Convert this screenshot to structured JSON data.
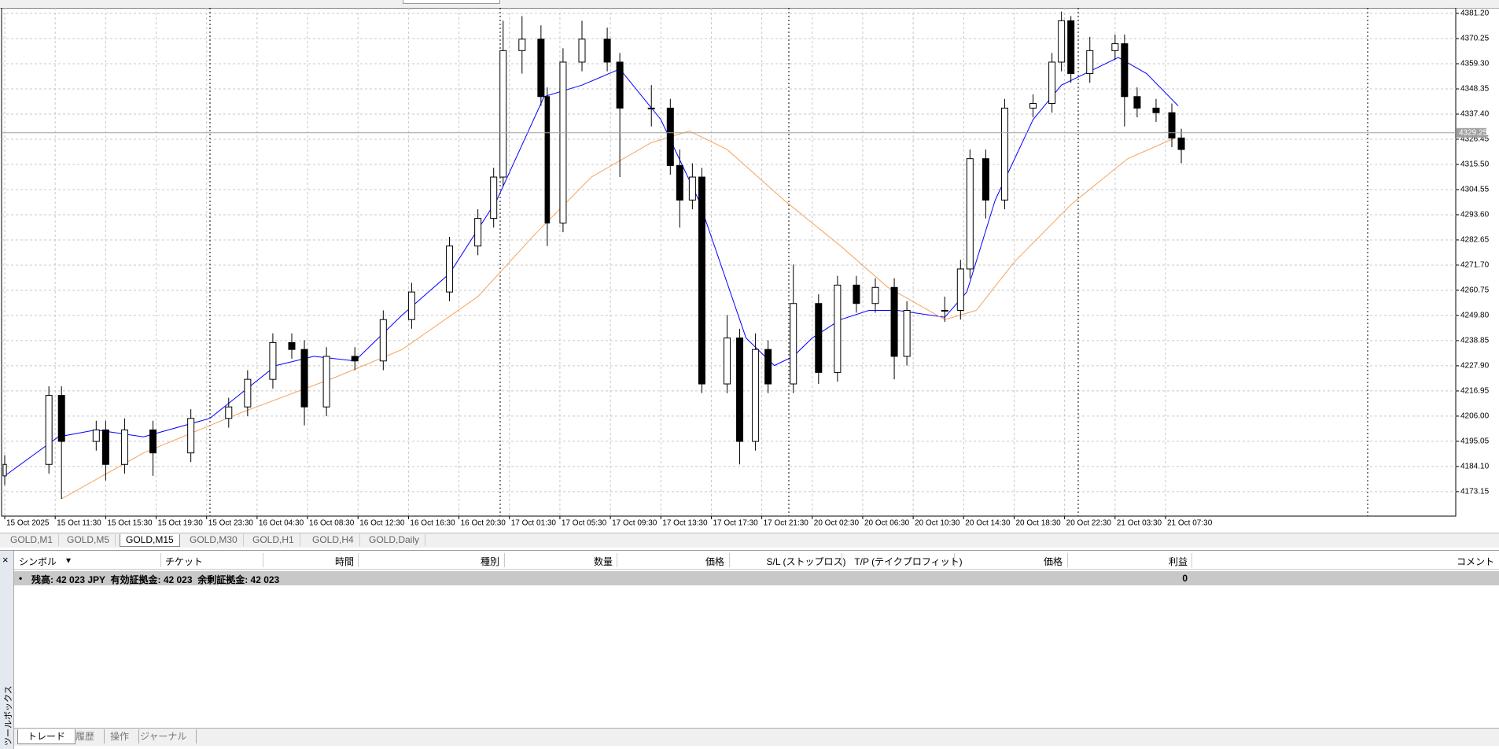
{
  "chart_data": {
    "type": "candlestick",
    "candles": {
      "x": [
        0,
        14,
        18,
        29,
        32,
        38,
        47,
        59,
        71,
        77,
        85,
        91,
        95,
        102,
        111,
        120,
        129,
        141,
        150,
        155,
        158,
        164,
        170,
        172,
        177,
        183,
        191,
        195,
        205,
        211,
        214,
        218,
        221,
        229,
        233,
        238,
        242,
        250,
        258,
        264,
        270,
        276,
        282,
        286,
        298,
        303,
        306,
        311,
        317,
        326,
        332,
        335,
        338,
        344,
        352,
        355,
        359,
        365,
        370,
        373
      ],
      "open": [
        4180,
        4185,
        4215,
        4195,
        4200,
        4185,
        4200,
        4190,
        4205,
        4210,
        4222,
        4238,
        4235,
        4210,
        4232,
        4230,
        4248,
        4260,
        4280,
        4292,
        4310,
        4365,
        4370,
        4345,
        4290,
        4360,
        4370,
        4360,
        4340,
        4340,
        4315,
        4300,
        4310,
        4220,
        4240,
        4195,
        4235,
        4220,
        4255,
        4225,
        4263,
        4255,
        4262,
        4232,
        4252,
        4252,
        4270,
        4318,
        4300,
        4340,
        4342,
        4360,
        4378,
        4355,
        4365,
        4368,
        4345,
        4340,
        4338,
        4327
      ],
      "high": [
        4189,
        4219,
        4219,
        4204,
        4204,
        4205,
        4204,
        4209,
        4214,
        4226,
        4242,
        4242,
        4239,
        4236,
        4236,
        4252,
        4264,
        4284,
        4296,
        4314,
        4378,
        4380,
        4376,
        4349,
        4366,
        4378,
        4375,
        4364,
        4350,
        4344,
        4322,
        4316,
        4314,
        4250,
        4244,
        4242,
        4239,
        4272,
        4259,
        4267,
        4267,
        4266,
        4266,
        4256,
        4258,
        4274,
        4322,
        4322,
        4344,
        4346,
        4364,
        4382,
        4380,
        4371,
        4372,
        4372,
        4349,
        4344,
        4342,
        4331
      ],
      "low": [
        4176,
        4181,
        4170,
        4191,
        4178,
        4181,
        4180,
        4186,
        4201,
        4206,
        4218,
        4231,
        4202,
        4206,
        4226,
        4226,
        4244,
        4256,
        4276,
        4288,
        4306,
        4355,
        4341,
        4280,
        4286,
        4356,
        4356,
        4310,
        4332,
        4311,
        4288,
        4296,
        4216,
        4216,
        4185,
        4191,
        4216,
        4216,
        4220,
        4221,
        4251,
        4251,
        4222,
        4228,
        4247,
        4248,
        4266,
        4292,
        4296,
        4336,
        4338,
        4356,
        4351,
        4351,
        4361,
        4332,
        4336,
        4334,
        4323,
        4316
      ],
      "close": [
        4185,
        4215,
        4195,
        4200,
        4185,
        4200,
        4190,
        4205,
        4210,
        4222,
        4238,
        4235,
        4210,
        4232,
        4230,
        4248,
        4260,
        4280,
        4292,
        4310,
        4365,
        4370,
        4345,
        4290,
        4360,
        4370,
        4360,
        4340,
        4340,
        4315,
        4300,
        4310,
        4220,
        4240,
        4195,
        4235,
        4220,
        4255,
        4225,
        4263,
        4255,
        4262,
        4232,
        4252,
        4252,
        4270,
        4318,
        4300,
        4340,
        4342,
        4360,
        4378,
        4355,
        4365,
        4368,
        4345,
        4340,
        4338,
        4327,
        4322
      ]
    },
    "series": [
      {
        "color": "#0000ff",
        "x": [
          0,
          17,
          29,
          44,
          65,
          86,
          98,
          111,
          126,
          141,
          156,
          171,
          183,
          195,
          208,
          220,
          235,
          244,
          250,
          256,
          265,
          274,
          283,
          298,
          305,
          314,
          326,
          335,
          347,
          353,
          362,
          372
        ],
        "values": [
          4180,
          4197,
          4200,
          4197,
          4205,
          4228,
          4232,
          4230,
          4250,
          4268,
          4300,
          4345,
          4350,
          4357,
          4335,
          4300,
          4240,
          4228,
          4232,
          4240,
          4248,
          4252,
          4252,
          4249,
          4260,
          4300,
          4335,
          4350,
          4358,
          4362,
          4355,
          4341
        ]
      },
      {
        "color": "#f4a460",
        "x": [
          18,
          44,
          74,
          105,
          126,
          150,
          168,
          186,
          205,
          217,
          229,
          247,
          265,
          280,
          298,
          308,
          320,
          338,
          356,
          371
        ],
        "values": [
          4170,
          4190,
          4207,
          4223,
          4235,
          4258,
          4285,
          4310,
          4325,
          4330,
          4322,
          4300,
          4280,
          4262,
          4248,
          4252,
          4273,
          4298,
          4318,
          4327
        ]
      }
    ],
    "current_price": {
      "value": 4329.25,
      "label": "4329.25"
    },
    "xlim": [
      -1,
      460
    ],
    "xticks": [
      {
        "value": 0,
        "label": "15 Oct 2025"
      },
      {
        "value": 16,
        "label": "15 Oct 11:30"
      },
      {
        "value": 32,
        "label": "15 Oct 15:30"
      },
      {
        "value": 48,
        "label": "15 Oct 19:30"
      },
      {
        "value": 64,
        "label": "15 Oct 23:30"
      },
      {
        "value": 80,
        "label": "16 Oct 04:30"
      },
      {
        "value": 96,
        "label": "16 Oct 08:30"
      },
      {
        "value": 112,
        "label": "16 Oct 12:30"
      },
      {
        "value": 128,
        "label": "16 Oct 16:30"
      },
      {
        "value": 144,
        "label": "16 Oct 20:30"
      },
      {
        "value": 160,
        "label": "17 Oct 01:30"
      },
      {
        "value": 176,
        "label": "17 Oct 05:30"
      },
      {
        "value": 192,
        "label": "17 Oct 09:30"
      },
      {
        "value": 208,
        "label": "17 Oct 13:30"
      },
      {
        "value": 224,
        "label": "17 Oct 17:30"
      },
      {
        "value": 240,
        "label": "17 Oct 21:30"
      },
      {
        "value": 256,
        "label": "20 Oct 02:30"
      },
      {
        "value": 272,
        "label": "20 Oct 06:30"
      },
      {
        "value": 288,
        "label": "20 Oct 10:30"
      },
      {
        "value": 304,
        "label": "20 Oct 14:30"
      },
      {
        "value": 320,
        "label": "20 Oct 18:30"
      },
      {
        "value": 336,
        "label": "20 Oct 22:30"
      },
      {
        "value": 352,
        "label": "21 Oct 03:30"
      },
      {
        "value": 368,
        "label": "21 Oct 07:30"
      }
    ],
    "ylim": [
      4162.5,
      4383.6
    ],
    "yticks": [
      {
        "value": 4381.2,
        "label": "4381.20"
      },
      4370.25,
      {
        "value": 4359.3,
        "label": "4359.30"
      },
      4348.35,
      {
        "value": 4337.4,
        "label": "4337.40"
      },
      4326.45,
      {
        "value": 4315.5,
        "label": "4315.50"
      },
      4304.55,
      {
        "value": 4293.6,
        "label": "4293.60"
      },
      4282.65,
      {
        "value": 4271.7,
        "label": "4271.70"
      },
      4260.75,
      {
        "value": 4249.8,
        "label": "4249.80"
      },
      4238.85,
      {
        "value": 4227.9,
        "label": "4227.90"
      },
      4216.95,
      {
        "value": 4206,
        "label": "4206.00"
      },
      4195.05,
      {
        "value": 4184.1,
        "label": "4184.10"
      },
      4173.15
    ],
    "grid": true
  },
  "chart_tabs": [
    "GOLD,M1",
    "GOLD,M5",
    "GOLD,M15",
    "GOLD,M30",
    "GOLD,H1",
    "GOLD,H4",
    "GOLD,Daily"
  ],
  "terminal": {
    "title": "ツールボックス",
    "columns": [
      "シンボル",
      "チケット",
      "時間",
      "種別",
      "数量",
      "価格",
      "S/L (ストップロス)",
      "T/P (テイクプロフィット)",
      "価格",
      "利益",
      "コメント"
    ],
    "account": {
      "summary": "残高: 42 023 JPY  有効証拠金: 42 023  余剰証拠金: 42 023",
      "profit": 0
    },
    "tabs": [
      "トレード",
      "履歴",
      "操作",
      "ジャーナル"
    ]
  }
}
